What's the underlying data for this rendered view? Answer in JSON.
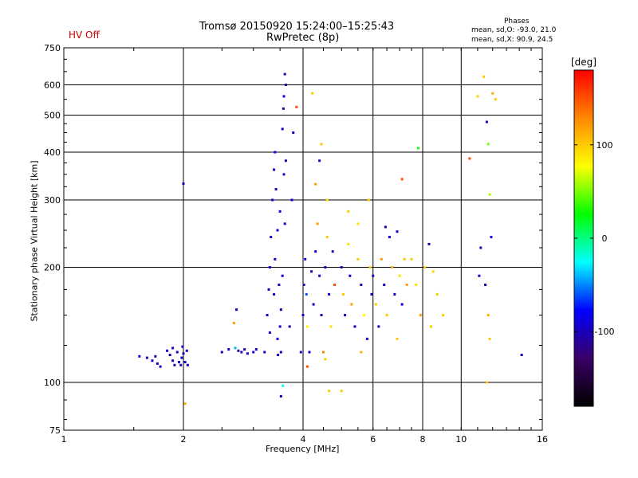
{
  "header": {
    "title_line1": "Tromsø 20150920 15:24:00–15:25:43",
    "title_line2": "RwPretec (8p)",
    "status": "HV Off",
    "status_color": "#cc0000",
    "stats_title": "Phases",
    "stats_o": "mean, sd,O: -93.0, 21.0",
    "stats_x": "mean, sd,X:  90.9, 24.5"
  },
  "colorbar": {
    "unit": "[deg]",
    "min": -180,
    "max": 180,
    "tick_values": [
      100,
      0,
      -100
    ],
    "tick_labels": [
      "100",
      "0",
      "-100"
    ],
    "colors": [
      "#000000",
      "#3a0066",
      "#0000ff",
      "#00ffff",
      "#00ff00",
      "#ffff00",
      "#ff8800",
      "#ff0000"
    ]
  },
  "chart_data": {
    "type": "scatter",
    "xlabel": "Frequency [MHz]",
    "ylabel": "Stationary phase Virtual Height [km]",
    "xscale": "log2",
    "yscale": "log",
    "xlim": [
      1,
      16
    ],
    "ylim": [
      75,
      750
    ],
    "x_ticks": [
      1,
      2,
      4,
      6,
      8,
      10,
      16
    ],
    "x_tick_labels": [
      "1",
      "2",
      "4",
      "6",
      "8",
      "10",
      "16"
    ],
    "y_ticks": [
      75,
      100,
      200,
      300,
      400,
      500,
      600,
      750
    ],
    "y_tick_labels": [
      "75",
      "100",
      "200",
      "300",
      "400",
      "500",
      "600",
      "750"
    ],
    "grid_x": [
      2,
      4,
      6,
      8,
      10
    ],
    "grid_y": [
      100,
      200,
      300,
      400,
      500,
      600
    ],
    "points": [
      [
        1.55,
        117,
        -95
      ],
      [
        1.62,
        116,
        -100
      ],
      [
        1.67,
        114,
        -90
      ],
      [
        1.7,
        117,
        -105
      ],
      [
        1.72,
        112,
        -95
      ],
      [
        1.75,
        110,
        -100
      ],
      [
        1.82,
        121,
        -95
      ],
      [
        1.85,
        118,
        -100
      ],
      [
        1.88,
        114,
        -95
      ],
      [
        1.9,
        111,
        -100
      ],
      [
        1.93,
        120,
        -105
      ],
      [
        1.95,
        113,
        -98
      ],
      [
        1.97,
        111,
        -100
      ],
      [
        1.98,
        116,
        -95
      ],
      [
        2.0,
        119,
        -110
      ],
      [
        2.02,
        113,
        -92
      ],
      [
        2.04,
        121,
        -100
      ],
      [
        2.05,
        111,
        -96
      ],
      [
        2.0,
        331,
        -100
      ],
      [
        2.02,
        88,
        110
      ],
      [
        1.88,
        123,
        -95
      ],
      [
        1.99,
        124,
        -100
      ],
      [
        2.5,
        120,
        -100
      ],
      [
        2.6,
        122,
        -95
      ],
      [
        2.7,
        123,
        -40
      ],
      [
        2.75,
        121,
        -110
      ],
      [
        2.8,
        120,
        -100
      ],
      [
        2.85,
        122,
        -95
      ],
      [
        2.72,
        155,
        -100
      ],
      [
        2.68,
        143,
        120
      ],
      [
        2.9,
        119,
        -100
      ],
      [
        3.0,
        120,
        -95
      ],
      [
        3.05,
        122,
        -100
      ],
      [
        3.2,
        120,
        -100
      ],
      [
        3.25,
        150,
        -95
      ],
      [
        3.28,
        175,
        -100
      ],
      [
        3.3,
        200,
        -90
      ],
      [
        3.32,
        240,
        -100
      ],
      [
        3.35,
        300,
        -95
      ],
      [
        3.38,
        360,
        -100
      ],
      [
        3.4,
        400,
        -90
      ],
      [
        3.42,
        320,
        -100
      ],
      [
        3.45,
        250,
        -95
      ],
      [
        3.48,
        180,
        -100
      ],
      [
        3.5,
        140,
        -95
      ],
      [
        3.52,
        120,
        -100
      ],
      [
        3.55,
        460,
        -95
      ],
      [
        3.57,
        520,
        -100
      ],
      [
        3.58,
        560,
        -90
      ],
      [
        3.6,
        640,
        -95
      ],
      [
        3.62,
        600,
        -100
      ],
      [
        3.62,
        380,
        -100
      ],
      [
        3.6,
        260,
        -95
      ],
      [
        3.55,
        190,
        -90
      ],
      [
        3.52,
        155,
        -100
      ],
      [
        3.45,
        130,
        -95
      ],
      [
        3.38,
        170,
        -100
      ],
      [
        3.3,
        135,
        -95
      ],
      [
        3.4,
        210,
        -100
      ],
      [
        3.5,
        280,
        -90
      ],
      [
        3.58,
        350,
        -100
      ],
      [
        3.46,
        118,
        -95
      ],
      [
        3.56,
        98,
        -20
      ],
      [
        3.52,
        92,
        -100
      ],
      [
        3.85,
        525,
        150
      ],
      [
        3.7,
        140,
        -100
      ],
      [
        3.75,
        300,
        -95
      ],
      [
        3.78,
        450,
        -100
      ],
      [
        3.95,
        120,
        -100
      ],
      [
        4.0,
        150,
        -95
      ],
      [
        4.02,
        180,
        -100
      ],
      [
        4.05,
        210,
        -90
      ],
      [
        4.08,
        170,
        -60
      ],
      [
        4.1,
        140,
        80
      ],
      [
        4.15,
        120,
        -100
      ],
      [
        4.2,
        195,
        -95
      ],
      [
        4.25,
        160,
        -100
      ],
      [
        4.3,
        220,
        -90
      ],
      [
        4.35,
        260,
        120
      ],
      [
        4.4,
        190,
        -100
      ],
      [
        4.45,
        150,
        -95
      ],
      [
        4.5,
        120,
        130
      ],
      [
        4.55,
        200,
        -100
      ],
      [
        4.6,
        240,
        100
      ],
      [
        4.65,
        170,
        -95
      ],
      [
        4.7,
        140,
        90
      ],
      [
        4.75,
        220,
        -100
      ],
      [
        4.8,
        180,
        150
      ],
      [
        4.22,
        570,
        100
      ],
      [
        4.45,
        420,
        100
      ],
      [
        4.6,
        300,
        90
      ],
      [
        4.65,
        95,
        100
      ],
      [
        4.4,
        380,
        -100
      ],
      [
        4.3,
        330,
        120
      ],
      [
        4.1,
        110,
        150
      ],
      [
        4.55,
        115,
        100
      ],
      [
        5.0,
        200,
        -95
      ],
      [
        5.05,
        170,
        100
      ],
      [
        5.1,
        150,
        -100
      ],
      [
        5.2,
        230,
        90
      ],
      [
        5.25,
        190,
        -95
      ],
      [
        5.3,
        160,
        120
      ],
      [
        5.4,
        140,
        -90
      ],
      [
        5.5,
        210,
        100
      ],
      [
        5.6,
        180,
        -100
      ],
      [
        5.7,
        150,
        80
      ],
      [
        5.8,
        130,
        -95
      ],
      [
        5.9,
        200,
        100
      ],
      [
        5.95,
        170,
        -100
      ],
      [
        5.2,
        280,
        100
      ],
      [
        5.5,
        260,
        90
      ],
      [
        5.0,
        95,
        100
      ],
      [
        5.6,
        120,
        110
      ],
      [
        5.85,
        300,
        100
      ],
      [
        6.0,
        190,
        -95
      ],
      [
        6.1,
        160,
        100
      ],
      [
        6.2,
        140,
        -100
      ],
      [
        6.3,
        210,
        120
      ],
      [
        6.4,
        180,
        -95
      ],
      [
        6.5,
        150,
        100
      ],
      [
        6.6,
        240,
        -90
      ],
      [
        6.7,
        200,
        110
      ],
      [
        6.8,
        170,
        -100
      ],
      [
        6.9,
        130,
        100
      ],
      [
        7.0,
        190,
        90
      ],
      [
        7.1,
        160,
        -95
      ],
      [
        7.2,
        210,
        100
      ],
      [
        7.3,
        180,
        120
      ],
      [
        6.45,
        255,
        -100
      ],
      [
        6.9,
        248,
        -95
      ],
      [
        7.1,
        340,
        150
      ],
      [
        7.5,
        210,
        100
      ],
      [
        7.7,
        180,
        90
      ],
      [
        7.9,
        150,
        120
      ],
      [
        8.1,
        200,
        100
      ],
      [
        8.3,
        230,
        -100
      ],
      [
        8.5,
        195,
        95
      ],
      [
        8.7,
        170,
        100
      ],
      [
        7.8,
        410,
        30
      ],
      [
        8.4,
        140,
        100
      ],
      [
        9.0,
        150,
        100
      ],
      [
        10.5,
        385,
        150
      ],
      [
        11.0,
        560,
        100
      ],
      [
        11.1,
        190,
        -95
      ],
      [
        11.2,
        225,
        -100
      ],
      [
        11.4,
        630,
        100
      ],
      [
        11.6,
        480,
        -100
      ],
      [
        11.7,
        420,
        50
      ],
      [
        11.8,
        310,
        60
      ],
      [
        11.9,
        240,
        -90
      ],
      [
        11.5,
        180,
        -100
      ],
      [
        11.7,
        150,
        110
      ],
      [
        11.8,
        130,
        100
      ],
      [
        12.2,
        550,
        100
      ],
      [
        14.2,
        118,
        -100
      ],
      [
        11.6,
        100,
        100
      ],
      [
        12.0,
        570,
        110
      ]
    ]
  }
}
